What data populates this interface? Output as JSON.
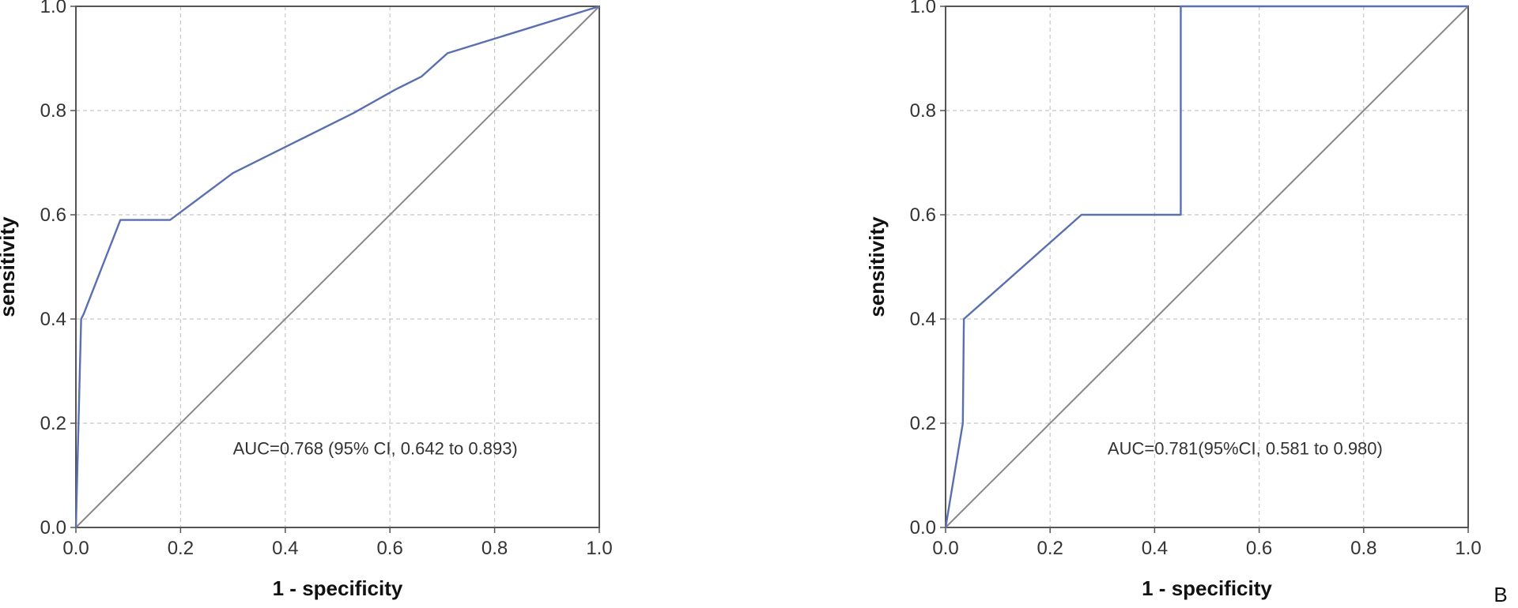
{
  "chart_data": [
    {
      "type": "line",
      "title": "",
      "xlabel": "1 - specificity",
      "ylabel": "sensitivity",
      "xlim": [
        0,
        1
      ],
      "ylim": [
        0,
        1
      ],
      "x_ticks": [
        "0.0",
        "0.2",
        "0.4",
        "0.6",
        "0.8",
        "1.0"
      ],
      "y_ticks": [
        "0.0",
        "0.2",
        "0.4",
        "0.6",
        "0.8",
        "1.0"
      ],
      "grid": true,
      "grid_style": "dashed",
      "annotation": "AUC=0.768 (95% CI, 0.642 to 0.893)",
      "panel_label": "",
      "series": [
        {
          "color": "#5a6fb0",
          "x": [
            0,
            0.01,
            0.015,
            0.085,
            0.18,
            0.3,
            0.42,
            0.53,
            0.61,
            0.66,
            0.71,
            1.0
          ],
          "y": [
            0,
            0.4,
            0.41,
            0.59,
            0.59,
            0.68,
            0.74,
            0.795,
            0.84,
            0.865,
            0.91,
            1.0
          ]
        },
        {
          "color": "#888888",
          "x": [
            0,
            1
          ],
          "y": [
            0,
            1
          ]
        }
      ]
    },
    {
      "type": "line",
      "title": "",
      "xlabel": "1 - specificity",
      "ylabel": "sensitivity",
      "xlim": [
        0,
        1
      ],
      "ylim": [
        0,
        1
      ],
      "x_ticks": [
        "0.0",
        "0.2",
        "0.4",
        "0.6",
        "0.8",
        "1.0"
      ],
      "y_ticks": [
        "0.0",
        "0.2",
        "0.4",
        "0.6",
        "0.8",
        "1.0"
      ],
      "grid": true,
      "grid_style": "dashed",
      "annotation": "AUC=0.781(95%CI, 0.581 to 0.980)",
      "panel_label": "B",
      "series": [
        {
          "color": "#5a6fb0",
          "x": [
            0,
            0.033,
            0.035,
            0.26,
            0.45,
            0.45,
            1.0
          ],
          "y": [
            0,
            0.2,
            0.4,
            0.6,
            0.6,
            1.0,
            1.0
          ]
        },
        {
          "color": "#888888",
          "x": [
            0,
            1
          ],
          "y": [
            0,
            1
          ]
        }
      ]
    }
  ]
}
